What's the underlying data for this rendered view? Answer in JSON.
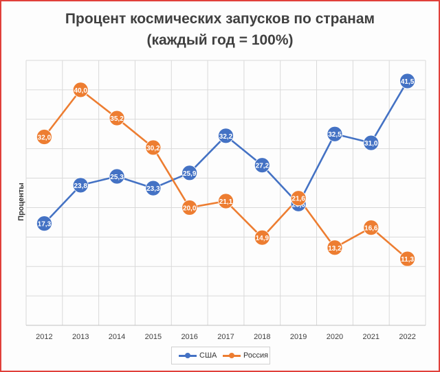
{
  "chart_data": {
    "type": "line",
    "title_line1": "Процент космических запусков по странам",
    "title_line2": "(каждый год = 100%)",
    "ylabel": "Проценты",
    "xlabel": "",
    "categories": [
      "2012",
      "2013",
      "2014",
      "2015",
      "2016",
      "2017",
      "2018",
      "2019",
      "2020",
      "2021",
      "2022"
    ],
    "ylim": [
      0,
      45
    ],
    "grid": true,
    "legend_position": "bottom",
    "series": [
      {
        "name": "США",
        "color": "#4472c4",
        "values": [
          17.3,
          23.8,
          25.3,
          23.3,
          25.9,
          32.2,
          27.2,
          20.6,
          32.5,
          31.0,
          41.5
        ],
        "labels": [
          "17,3",
          "23,8",
          "25,3",
          "23,3",
          "25,9",
          "32,2",
          "27,2",
          "20,6",
          "32,5",
          "31,0",
          "41,5"
        ]
      },
      {
        "name": "Россия",
        "color": "#ed7d31",
        "values": [
          32.0,
          40.0,
          35.2,
          30.2,
          20.0,
          21.1,
          14.9,
          21.6,
          13.2,
          16.6,
          11.3
        ],
        "labels": [
          "32,0",
          "40,0",
          "35,2",
          "30,2",
          "20,0",
          "21,1",
          "14,9",
          "21,6",
          "13,2",
          "16,6",
          "11,3"
        ]
      }
    ]
  }
}
